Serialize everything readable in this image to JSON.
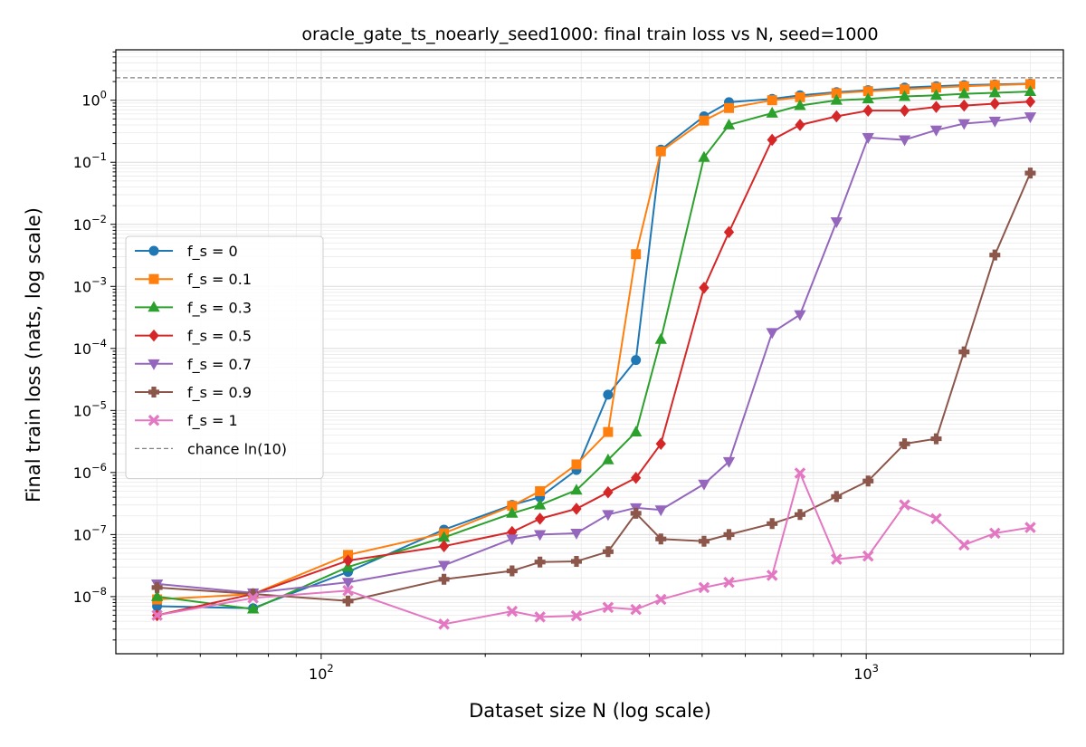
{
  "chart_data": {
    "type": "line",
    "title": "oracle_gate_ts_noearly_seed1000: final train loss vs N, seed=1000",
    "xlabel": "Dataset size N (log scale)",
    "ylabel": "Final train loss (nats, log scale)",
    "x_scale": "log",
    "y_scale": "log",
    "xlim": [
      42,
      2300
    ],
    "ylim": [
      1.2e-09,
      6.5
    ],
    "grid": true,
    "legend_position": "center-left",
    "x_ticks": [
      {
        "value": 100,
        "base": "10",
        "exp": "2"
      },
      {
        "value": 1000,
        "base": "10",
        "exp": "3"
      }
    ],
    "y_ticks": [
      {
        "value": 1e-08,
        "base": "10",
        "exp": "−8"
      },
      {
        "value": 1e-07,
        "base": "10",
        "exp": "−7"
      },
      {
        "value": 1e-06,
        "base": "10",
        "exp": "−6"
      },
      {
        "value": 1e-05,
        "base": "10",
        "exp": "−5"
      },
      {
        "value": 0.0001,
        "base": "10",
        "exp": "−4"
      },
      {
        "value": 0.001,
        "base": "10",
        "exp": "−3"
      },
      {
        "value": 0.01,
        "base": "10",
        "exp": "−2"
      },
      {
        "value": 0.1,
        "base": "10",
        "exp": "−1"
      },
      {
        "value": 1,
        "base": "10",
        "exp": "0"
      }
    ],
    "x": [
      50,
      75,
      112,
      168,
      224,
      252,
      294,
      336,
      378,
      420,
      504,
      560,
      672,
      756,
      882,
      1008,
      1176,
      1344,
      1512,
      1722,
      2000
    ],
    "series": [
      {
        "name": "f_s = 0",
        "color": "#1f77b4",
        "marker": "circle",
        "values": [
          7e-09,
          6.5e-09,
          2.5e-08,
          1.2e-07,
          3e-07,
          4e-07,
          1.1e-06,
          1.8e-05,
          6.5e-05,
          0.16,
          0.55,
          0.93,
          1.05,
          1.2,
          1.35,
          1.45,
          1.6,
          1.68,
          1.75,
          1.8,
          1.85
        ]
      },
      {
        "name": "f_s = 0.1",
        "color": "#ff7f0e",
        "marker": "square",
        "values": [
          9e-09,
          1.1e-08,
          4.7e-08,
          1.05e-07,
          2.9e-07,
          5e-07,
          1.35e-06,
          4.5e-06,
          0.0033,
          0.15,
          0.47,
          0.75,
          1.0,
          1.12,
          1.3,
          1.4,
          1.5,
          1.6,
          1.68,
          1.75,
          1.82
        ]
      },
      {
        "name": "f_s = 0.3",
        "color": "#2ca02c",
        "marker": "triangle-up",
        "values": [
          1e-08,
          6.3e-09,
          3e-08,
          9e-08,
          2.2e-07,
          3e-07,
          5.2e-07,
          1.6e-06,
          4.5e-06,
          0.00014,
          0.12,
          0.4,
          0.62,
          0.82,
          1.0,
          1.05,
          1.15,
          1.2,
          1.27,
          1.32,
          1.38
        ]
      },
      {
        "name": "f_s = 0.5",
        "color": "#d62728",
        "marker": "diamond",
        "values": [
          5e-09,
          1.1e-08,
          3.8e-08,
          6.5e-08,
          1.1e-07,
          1.8e-07,
          2.6e-07,
          4.8e-07,
          8.2e-07,
          2.9e-06,
          0.00095,
          0.0075,
          0.23,
          0.4,
          0.55,
          0.68,
          0.68,
          0.78,
          0.82,
          0.88,
          0.95
        ]
      },
      {
        "name": "f_s = 0.7",
        "color": "#9467bd",
        "marker": "triangle-down",
        "values": [
          1.6e-08,
          1.15e-08,
          1.7e-08,
          3.2e-08,
          8.5e-08,
          1e-07,
          1.05e-07,
          2.1e-07,
          2.7e-07,
          2.5e-07,
          6.5e-07,
          1.5e-06,
          0.00018,
          0.00035,
          0.011,
          0.25,
          0.23,
          0.33,
          0.42,
          0.46,
          0.54
        ]
      },
      {
        "name": "f_s = 0.9",
        "color": "#8c564b",
        "marker": "plus-filled",
        "values": [
          1.4e-08,
          1.1e-08,
          8.5e-09,
          1.9e-08,
          2.6e-08,
          3.6e-08,
          3.7e-08,
          5.3e-08,
          2.2e-07,
          8.5e-08,
          7.8e-08,
          1e-07,
          1.5e-07,
          2.1e-07,
          4.1e-07,
          7.3e-07,
          2.9e-06,
          3.5e-06,
          8.8e-05,
          0.0032,
          0.067
        ]
      },
      {
        "name": "f_s = 1",
        "color": "#e377c2",
        "marker": "x-filled",
        "values": [
          5e-09,
          9.5e-09,
          1.25e-08,
          3.6e-09,
          5.8e-09,
          4.7e-09,
          4.9e-09,
          6.7e-09,
          6.2e-09,
          9e-09,
          1.4e-08,
          1.7e-08,
          2.2e-08,
          9.8e-07,
          4e-08,
          4.5e-08,
          3e-07,
          1.8e-07,
          6.8e-08,
          1.05e-07,
          1.3e-07
        ]
      }
    ],
    "reference_lines": [
      {
        "name": "chance ln(10)",
        "value": 2.302585,
        "color": "#808080",
        "style": "dashed"
      }
    ]
  }
}
